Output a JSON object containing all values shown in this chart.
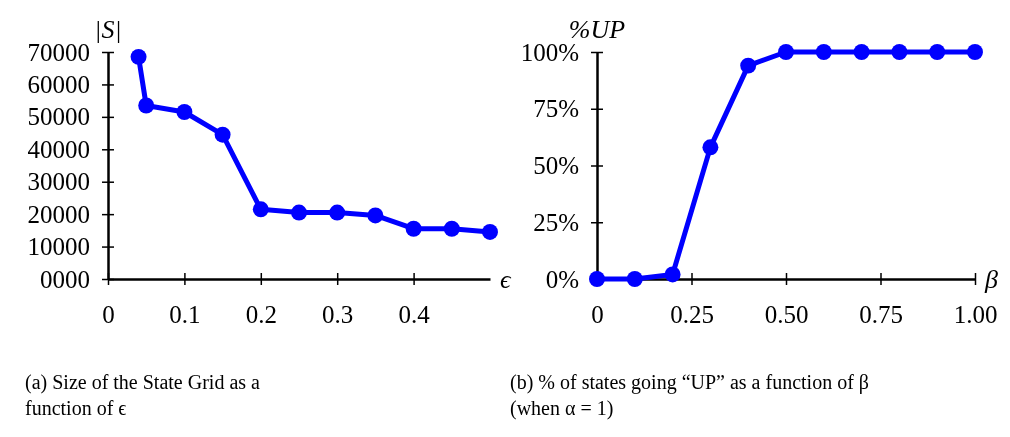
{
  "chart_data": [
    {
      "type": "line",
      "ylabel": "|S|",
      "xlabel": "ϵ",
      "x": [
        0.04,
        0.05,
        0.1,
        0.15,
        0.2,
        0.25,
        0.3,
        0.35,
        0.4,
        0.45,
        0.5
      ],
      "series": [
        {
          "color": "#0000ff",
          "values": [
            68500,
            53500,
            51500,
            44500,
            21500,
            20500,
            20500,
            19600,
            15500,
            15500,
            14500
          ]
        }
      ],
      "xlim": [
        0,
        0.5
      ],
      "xticks": [
        0,
        0.1,
        0.2,
        0.3,
        0.4
      ],
      "ylim": [
        0,
        70000
      ],
      "yticks": [
        {
          "value": 0,
          "label": "0000"
        },
        10000,
        20000,
        30000,
        40000,
        50000,
        60000,
        70000
      ],
      "grid": false,
      "marker": "circle",
      "line_style": "solid",
      "annotations": [
        "(a) Size of the State Grid as a function of ϵ"
      ]
    },
    {
      "type": "line",
      "ylabel": "%UP",
      "xlabel": "β",
      "x": [
        0,
        0.1,
        0.2,
        0.3,
        0.4,
        0.5,
        0.6,
        0.7,
        0.8,
        0.9,
        1.0
      ],
      "series": [
        {
          "color": "#0000ff",
          "values": [
            0,
            0,
            2,
            58,
            94,
            100,
            100,
            100,
            100,
            100,
            100
          ]
        }
      ],
      "xlim": [
        0,
        1
      ],
      "xticks": [
        0,
        0.25,
        {
          "value": 0.5,
          "label": "0.50"
        },
        0.75,
        {
          "value": 1,
          "label": "1.00"
        }
      ],
      "ylim": [
        0,
        100
      ],
      "yticks": [
        {
          "value": 0,
          "label": "0%"
        },
        {
          "value": 25,
          "label": "25%"
        },
        {
          "value": 50,
          "label": "50%"
        },
        {
          "value": 75,
          "label": "75%"
        },
        {
          "value": 100,
          "label": "100%"
        }
      ],
      "grid": false,
      "marker": "circle",
      "line_style": "solid",
      "annotations": [
        "(b) % of states going “UP” as a function of β (when α = 1)"
      ]
    }
  ]
}
